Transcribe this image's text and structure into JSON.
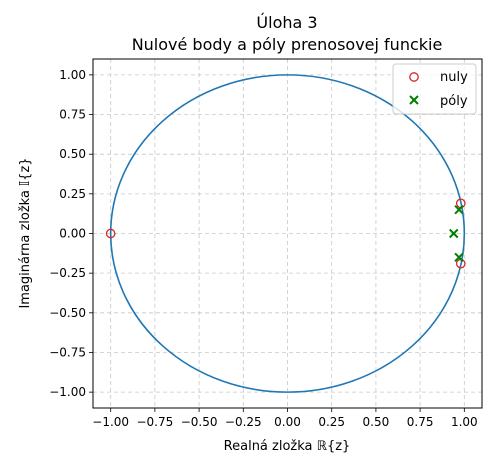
{
  "chart_data": {
    "type": "scatter",
    "title_line1": "Úloha 3",
    "title_line2": "Nulové body a póly prenosovej funckie",
    "xlabel": "Realná zložka ℝ{z}",
    "ylabel": "Imaginárna zložka 𝕀{z}",
    "xlim": [
      -1.1,
      1.1
    ],
    "ylim": [
      -1.1,
      1.1
    ],
    "xticks": [
      -1.0,
      -0.75,
      -0.5,
      -0.25,
      0.0,
      0.25,
      0.5,
      0.75,
      1.0
    ],
    "xtick_labels": [
      "−1.00",
      "−0.75",
      "−0.50",
      "−0.25",
      "0.00",
      "0.25",
      "0.50",
      "0.75",
      "1.00"
    ],
    "yticks": [
      1.0,
      0.75,
      0.5,
      0.25,
      0.0,
      -0.25,
      -0.5,
      -0.75,
      -1.0
    ],
    "ytick_labels": [
      "1.00",
      "0.75",
      "0.50",
      "0.25",
      "0.00",
      "−0.25",
      "−0.50",
      "−0.75",
      "−1.00"
    ],
    "grid": true,
    "legend_position": "top-right",
    "unit_circle": {
      "radius": 1.0,
      "color": "#1f77b4"
    },
    "series": [
      {
        "name": "nuly",
        "marker": "circle",
        "color": "#d62728",
        "points": [
          [
            -1.0,
            0.0
          ],
          [
            0.98,
            0.19
          ],
          [
            0.98,
            -0.19
          ]
        ]
      },
      {
        "name": "póly",
        "marker": "x",
        "color": "#008000",
        "points": [
          [
            0.97,
            0.15
          ],
          [
            0.94,
            0.0
          ],
          [
            0.97,
            -0.15
          ]
        ]
      }
    ]
  }
}
